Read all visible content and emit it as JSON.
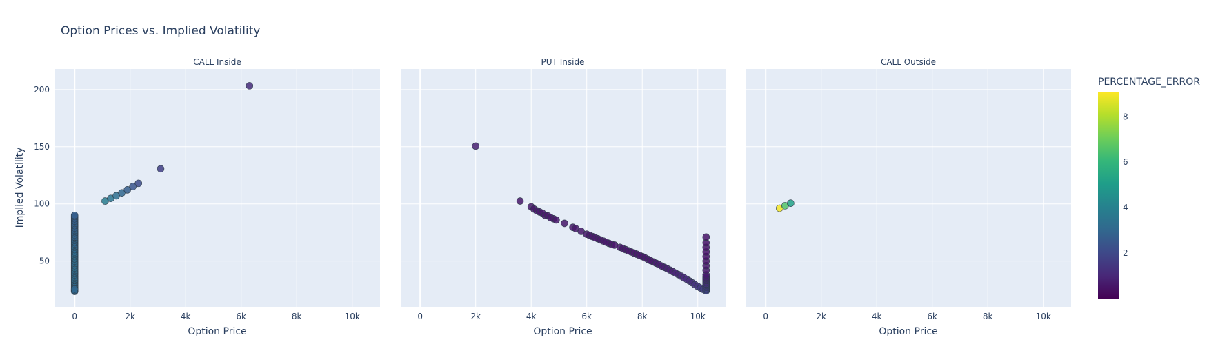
{
  "chart_data": {
    "type": "scatter",
    "title": "Option Prices vs. Implied Volatility",
    "ylabel": "Implied Volatility",
    "ylim": [
      10,
      218
    ],
    "y_ticks": [
      50,
      100,
      150,
      200
    ],
    "y_tick_labels": [
      "50",
      "100",
      "150",
      "200"
    ],
    "colorbar": {
      "title": "PERCENTAGE_ERROR",
      "colorscale": "Viridis",
      "range": [
        0,
        9.1
      ],
      "ticks": [
        2,
        4,
        6,
        8
      ],
      "tick_labels": [
        "2",
        "4",
        "6",
        "8"
      ],
      "colors": [
        "#440154",
        "#482878",
        "#3e4989",
        "#31688e",
        "#26828e",
        "#1f9e89",
        "#35b779",
        "#6ece58",
        "#b5de2b",
        "#fde725"
      ]
    },
    "panels": [
      {
        "subtitle": "CALL Inside",
        "xlabel": "Option Price",
        "xlim": [
          -700,
          11000
        ],
        "x_ticks": [
          0,
          2000,
          4000,
          6000,
          8000,
          10000
        ],
        "x_tick_labels": [
          "0",
          "2k",
          "4k",
          "6k",
          "8k",
          "10k"
        ],
        "series": [
          {
            "x": [
              0,
              0,
              0,
              0,
              0,
              0,
              0,
              0,
              0,
              0,
              0,
              0,
              0,
              0,
              0,
              0,
              0,
              0,
              0,
              0,
              0,
              0,
              0,
              0,
              0,
              0,
              0,
              0,
              0,
              0,
              0,
              0,
              0,
              0,
              0,
              0,
              0,
              0,
              0,
              0,
              0,
              0,
              0,
              0,
              0,
              0,
              0,
              0,
              0,
              0,
              0,
              0,
              0,
              0,
              0,
              0,
              0,
              0,
              0,
              0,
              0,
              0,
              0,
              0,
              0,
              0,
              0,
              0,
              0,
              0,
              1100,
              1300,
              1500,
              1700,
              1900,
              2100,
              2300,
              3100,
              6300
            ],
            "y": [
              24,
              25,
              26,
              27,
              28,
              29,
              30,
              31,
              32,
              33,
              34,
              35,
              36,
              37,
              38,
              39,
              40,
              41,
              42,
              43,
              44,
              45,
              46,
              47,
              48,
              49,
              50,
              51,
              52,
              53,
              54,
              55,
              56,
              57,
              58,
              59,
              60,
              61,
              62,
              63,
              64,
              65,
              66,
              67,
              68,
              69,
              70,
              71,
              72,
              73,
              74,
              75,
              76,
              77,
              78,
              79,
              80,
              81,
              82,
              83,
              84,
              85,
              86,
              87,
              88,
              89,
              90,
              23.5,
              24.5,
              25.5,
              102.5,
              104.8,
              107.1,
              109.6,
              112.3,
              115.2,
              118.0,
              130.7,
              203.3
            ],
            "color_value": [
              3.0,
              3.0,
              3.0,
              3.1,
              3.1,
              3.1,
              3.1,
              3.1,
              3.1,
              3.2,
              3.2,
              3.2,
              3.2,
              3.2,
              3.2,
              3.2,
              3.2,
              3.2,
              3.2,
              3.3,
              3.3,
              3.3,
              3.3,
              3.3,
              3.3,
              3.3,
              3.3,
              3.3,
              3.3,
              3.3,
              3.3,
              3.3,
              3.3,
              3.2,
              3.2,
              3.2,
              3.2,
              3.1,
              3.1,
              3.1,
              3.0,
              3.0,
              3.0,
              3.0,
              3.0,
              3.0,
              3.0,
              2.9,
              2.9,
              2.9,
              2.9,
              2.9,
              2.9,
              2.9,
              2.8,
              2.8,
              2.8,
              2.8,
              2.8,
              2.8,
              2.8,
              2.8,
              2.7,
              2.7,
              2.7,
              2.7,
              2.7,
              3.0,
              3.0,
              3.0,
              3.8,
              3.5,
              3.3,
              3.0,
              2.7,
              2.4,
              2.1,
              1.7,
              1.1
            ]
          }
        ]
      },
      {
        "subtitle": "PUT Inside",
        "xlabel": "Option Price",
        "xlim": [
          -700,
          11000
        ],
        "x_ticks": [
          0,
          2000,
          4000,
          6000,
          8000,
          10000
        ],
        "x_tick_labels": [
          "0",
          "2k",
          "4k",
          "6k",
          "8k",
          "10k"
        ],
        "series": [
          {
            "x": [
              2000,
              3600,
              4000,
              4100,
              4200,
              4300,
              4400,
              4500,
              4600,
              4700,
              4800,
              4900,
              5200,
              5500,
              5600,
              5800,
              6000,
              6100,
              6200,
              6300,
              6400,
              6500,
              6600,
              6700,
              6800,
              6900,
              7000,
              7200,
              7300,
              7400,
              7500,
              7600,
              7700,
              7800,
              7900,
              8000,
              8100,
              8200,
              8300,
              8400,
              8500,
              8600,
              8700,
              8800,
              8900,
              9000,
              9100,
              9200,
              9300,
              9400,
              9500,
              9600,
              9700,
              9800,
              9900,
              10000,
              10100,
              10200,
              10300,
              10300,
              10300,
              10300,
              10300,
              10300,
              10300,
              10300,
              10300,
              10300,
              10300,
              10300,
              10300,
              10300,
              10300,
              10300,
              10300,
              10300,
              10300,
              10300,
              10300,
              10300,
              10300
            ],
            "y": [
              150.5,
              102.5,
              97.5,
              95.5,
              94.0,
              93.0,
              92.0,
              90.0,
              89.5,
              88.0,
              87.0,
              86.0,
              83.0,
              79.5,
              78.5,
              76.0,
              73.5,
              72.5,
              71.5,
              70.5,
              69.5,
              68.5,
              67.5,
              66.5,
              65.5,
              64.5,
              64.0,
              62.0,
              61.0,
              60.0,
              59.0,
              58.0,
              57.0,
              56.0,
              55.0,
              54.0,
              52.8,
              51.6,
              50.4,
              49.3,
              48.1,
              46.9,
              45.7,
              44.5,
              43.3,
              42.1,
              40.8,
              39.5,
              38.2,
              36.9,
              35.5,
              34.1,
              32.6,
              31.0,
              29.4,
              27.8,
              26.4,
              25.2,
              24.0,
              24.0,
              25.0,
              26.0,
              27.0,
              28.0,
              29.0,
              30.0,
              31.0,
              32.0,
              33.0,
              34.0,
              35.0,
              36.0,
              38.0,
              42.0,
              46.0,
              50.0,
              54.0,
              58.0,
              62.0,
              66.0,
              71.0
            ],
            "color_value": [
              0.8,
              0.6,
              0.6,
              0.6,
              0.6,
              0.6,
              0.6,
              0.6,
              0.6,
              0.6,
              0.6,
              0.6,
              0.6,
              0.6,
              0.6,
              0.6,
              0.6,
              0.6,
              0.6,
              0.6,
              0.6,
              0.6,
              0.6,
              0.6,
              0.6,
              0.6,
              0.6,
              0.6,
              0.6,
              0.6,
              0.6,
              0.6,
              0.6,
              0.6,
              0.6,
              0.6,
              0.6,
              0.6,
              0.6,
              0.6,
              0.7,
              0.7,
              0.7,
              0.7,
              0.8,
              0.8,
              0.8,
              0.9,
              0.9,
              1.0,
              1.0,
              1.1,
              1.1,
              1.2,
              1.3,
              1.4,
              1.5,
              1.6,
              1.8,
              1.9,
              1.8,
              1.7,
              1.6,
              1.5,
              1.4,
              1.3,
              1.2,
              1.1,
              1.0,
              0.9,
              0.8,
              0.8,
              0.7,
              0.6,
              0.6,
              0.5,
              0.5,
              0.5,
              0.5,
              0.5,
              0.5
            ]
          }
        ]
      },
      {
        "subtitle": "CALL Outside",
        "xlabel": "Option Price",
        "xlim": [
          -700,
          11000
        ],
        "x_ticks": [
          0,
          2000,
          4000,
          6000,
          8000,
          10000
        ],
        "x_tick_labels": [
          "0",
          "2k",
          "4k",
          "6k",
          "8k",
          "10k"
        ],
        "series": [
          {
            "x": [
              500,
              700,
              900
            ],
            "y": [
              96.2,
              98.4,
              100.6
            ],
            "color_value": [
              9.0,
              6.6,
              5.2
            ]
          }
        ]
      }
    ]
  }
}
